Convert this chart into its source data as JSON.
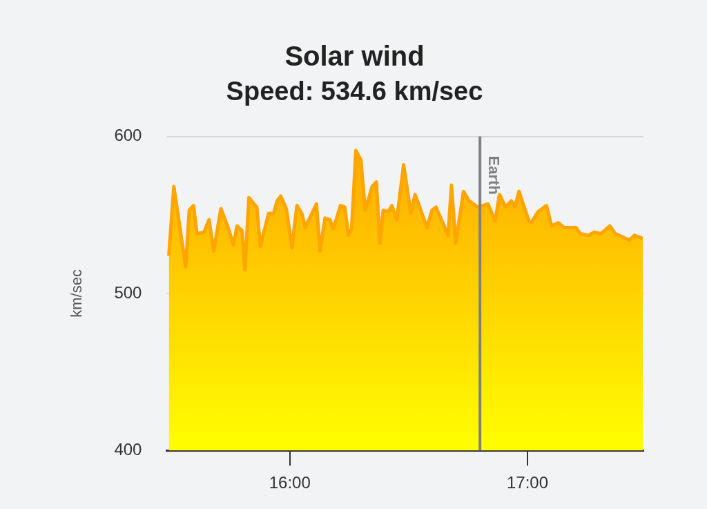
{
  "chart_data": {
    "type": "area",
    "title": "Solar wind",
    "subtitle": "Speed: 534.6 km/sec",
    "ylabel": "km/sec",
    "x": [
      15.491,
      15.512,
      15.562,
      15.577,
      15.595,
      15.609,
      15.639,
      15.66,
      15.68,
      15.71,
      15.74,
      15.763,
      15.778,
      15.799,
      15.811,
      15.828,
      15.861,
      15.876,
      15.911,
      15.932,
      15.947,
      15.962,
      15.985,
      16.009,
      16.03,
      16.05,
      16.065,
      16.112,
      16.127,
      16.148,
      16.169,
      16.183,
      16.213,
      16.231,
      16.246,
      16.26,
      16.278,
      16.299,
      16.317,
      16.346,
      16.364,
      16.379,
      16.393,
      16.414,
      16.429,
      16.45,
      16.479,
      16.509,
      16.527,
      16.577,
      16.598,
      16.615,
      16.666,
      16.68,
      16.698,
      16.731,
      16.754,
      16.79,
      16.834,
      16.864,
      16.882,
      16.908,
      16.932,
      16.947,
      16.964,
      17.006,
      17.015,
      17.044,
      17.08,
      17.101,
      17.13,
      17.154,
      17.204,
      17.222,
      17.257,
      17.281,
      17.308,
      17.346,
      17.37,
      17.399,
      17.429,
      17.45,
      17.485
    ],
    "series": [
      {
        "color": "#ffa500",
        "values": [
          524,
          568,
          517,
          553,
          556,
          538,
          539,
          547,
          527,
          554,
          542,
          531,
          543,
          540,
          515,
          561,
          555,
          530,
          551,
          551,
          559,
          562,
          554,
          529,
          556,
          551,
          542,
          557,
          527,
          548,
          547,
          541,
          556,
          555,
          537,
          541,
          591,
          585,
          553,
          568,
          571,
          532,
          553,
          552,
          556,
          547,
          582,
          551,
          563,
          542,
          553,
          555,
          537,
          569,
          532,
          565,
          559,
          555,
          557,
          546,
          563,
          555,
          559,
          555,
          565,
          546,
          545,
          552,
          556,
          543,
          545,
          542,
          542,
          538,
          537,
          539,
          538,
          543,
          538,
          536,
          534,
          537,
          535
        ]
      }
    ],
    "xlim": [
      15.482,
      17.488
    ],
    "xticks": [
      {
        "value": 16,
        "label": "16:00"
      },
      {
        "value": 17,
        "label": "17:00"
      }
    ],
    "ylim": [
      400,
      600
    ],
    "yticks": [
      400,
      500,
      600
    ],
    "grid": "y",
    "legend": false,
    "ref_lines": [
      {
        "axis": "x",
        "value": 16.8,
        "label": "Earth",
        "color": "#808080"
      }
    ]
  }
}
